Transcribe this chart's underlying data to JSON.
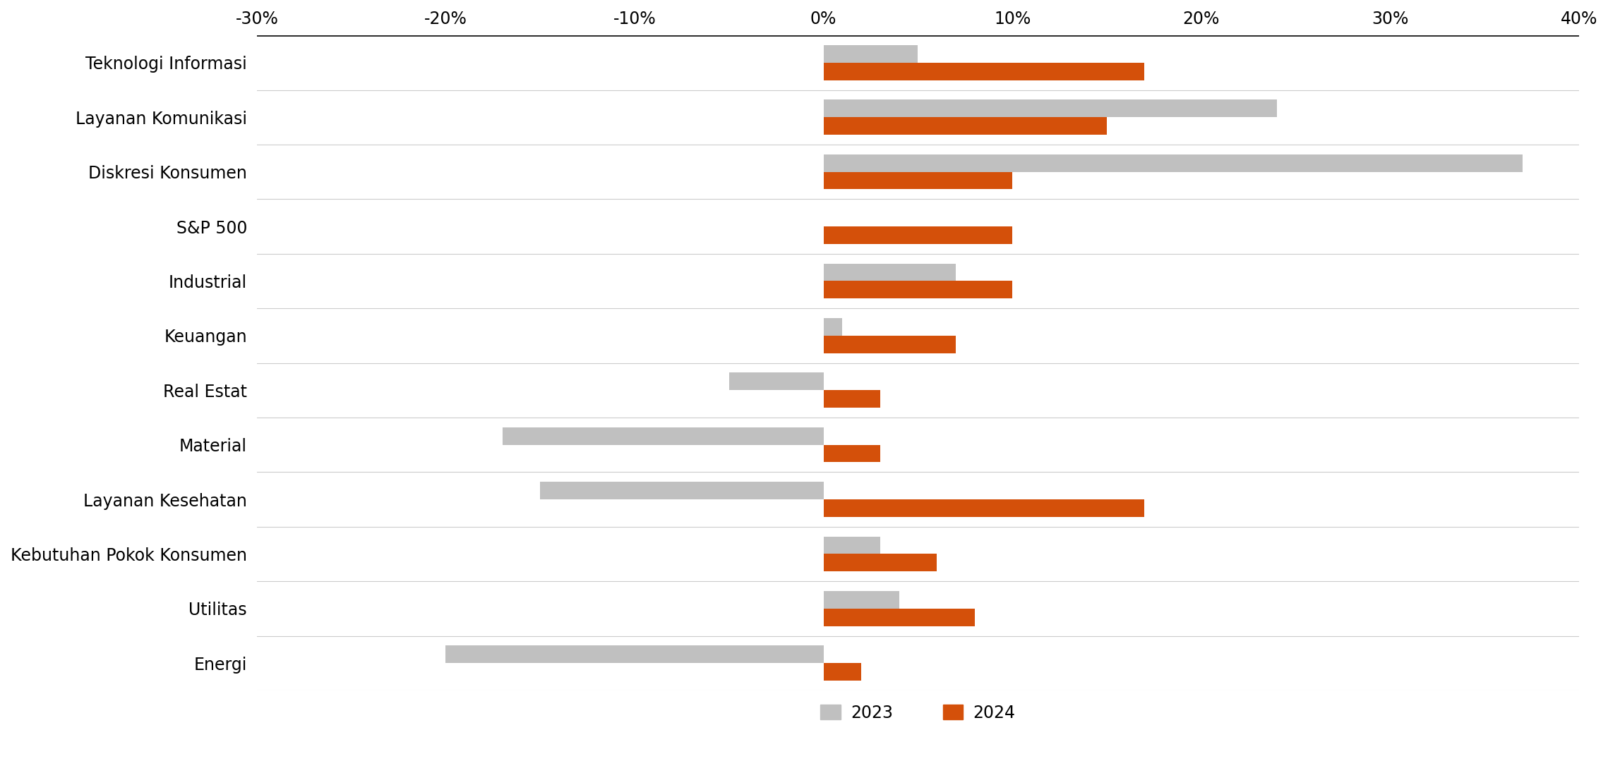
{
  "categories": [
    "Teknologi Informasi",
    "Layanan Komunikasi",
    "Diskresi Konsumen",
    "S&P 500",
    "Industrial",
    "Keuangan",
    "Real Estat",
    "Material",
    "Layanan Kesehatan",
    "Kebutuhan Pokok Konsumen",
    "Utilitas",
    "Energi"
  ],
  "values_2023": [
    5,
    24,
    37,
    0,
    7,
    1,
    -5,
    -17,
    -15,
    3,
    4,
    -20
  ],
  "values_2024": [
    17,
    15,
    10,
    10,
    10,
    7,
    3,
    3,
    17,
    6,
    8,
    2
  ],
  "color_2023": "#c0c0c0",
  "color_2024": "#d4500a",
  "xlim": [
    -30,
    40
  ],
  "xtick_values": [
    -30,
    -20,
    -10,
    0,
    10,
    20,
    30,
    40
  ],
  "xtick_labels": [
    "-30%",
    "-20%",
    "-10%",
    "0%",
    "10%",
    "20%",
    "30%",
    "40%"
  ],
  "legend_2023": "2023",
  "legend_2024": "2024",
  "background_color": "#ffffff",
  "bar_height": 0.32,
  "separator_color": "#cccccc",
  "fig_width": 22.78,
  "fig_height": 10.96
}
